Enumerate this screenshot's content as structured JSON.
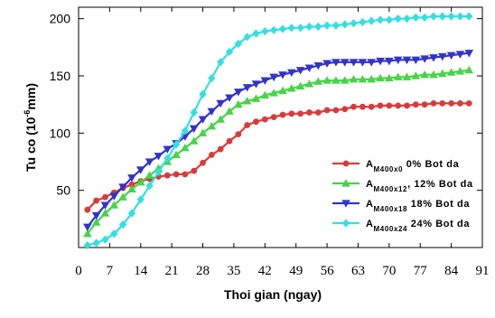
{
  "chart_data": {
    "type": "line",
    "title": "",
    "xlabel": "Thoi gian (ngay)",
    "ylabel": {
      "prefix": "Tu co (10",
      "superscript": "-6",
      "suffix": "mm)"
    },
    "xlim": [
      0,
      91
    ],
    "ylim": [
      0,
      210
    ],
    "xticks": [
      0,
      7,
      14,
      21,
      28,
      35,
      42,
      49,
      56,
      63,
      70,
      77,
      84,
      91
    ],
    "xtick_labels": [
      "0",
      "7",
      "14",
      "21",
      "28",
      "35",
      "42",
      "49",
      "56",
      "63",
      "70",
      "77",
      "84",
      "91"
    ],
    "yticks": [
      50,
      100,
      150,
      200
    ],
    "ytick_labels": [
      "50",
      "100",
      "150",
      "200"
    ],
    "grid": false,
    "legend_position": "right",
    "x": [
      2,
      4,
      6,
      8,
      10,
      12,
      14,
      16,
      18,
      20,
      22,
      24,
      26,
      28,
      30,
      32,
      34,
      36,
      38,
      40,
      42,
      44,
      46,
      48,
      50,
      52,
      54,
      56,
      58,
      60,
      62,
      64,
      66,
      68,
      70,
      72,
      74,
      76,
      78,
      80,
      82,
      84,
      86,
      88
    ],
    "series": [
      {
        "legend_main": "A",
        "legend_sub": "M400x0",
        "legend_suffix": " 0% Bot da",
        "color": "#dc3a3a",
        "marker": "circle",
        "values": [
          33,
          41,
          44,
          48,
          52,
          55,
          58,
          60,
          62,
          63,
          64,
          64,
          67,
          74,
          81,
          86,
          93,
          99,
          107,
          110,
          112,
          114,
          116,
          117,
          117,
          118,
          118,
          120,
          120,
          121,
          123,
          123,
          123,
          124,
          124,
          124,
          124,
          125,
          125,
          126,
          126,
          126,
          126,
          126
        ]
      },
      {
        "legend_main": "A",
        "legend_sub": "M400x12",
        "legend_suffix": ", 12% Bot da",
        "color": "#44d644",
        "marker": "triangle-up",
        "values": [
          12,
          22,
          30,
          37,
          44,
          51,
          57,
          63,
          69,
          75,
          81,
          87,
          93,
          100,
          106,
          112,
          119,
          125,
          128,
          130,
          133,
          135,
          137,
          139,
          141,
          143,
          145,
          146,
          146,
          146,
          147,
          147,
          147,
          148,
          148,
          149,
          149,
          150,
          151,
          151,
          152,
          153,
          154,
          155
        ]
      },
      {
        "legend_main": "A",
        "legend_sub": "M400x18",
        "legend_suffix": " 18% Bot da",
        "color": "#3333cc",
        "marker": "triangle-down",
        "values": [
          18,
          28,
          37,
          45,
          53,
          61,
          68,
          75,
          80,
          86,
          91,
          97,
          104,
          112,
          119,
          126,
          131,
          136,
          140,
          143,
          146,
          149,
          151,
          153,
          155,
          157,
          159,
          161,
          162,
          162,
          162,
          162,
          162,
          163,
          163,
          164,
          164,
          164,
          165,
          166,
          167,
          168,
          169,
          170
        ]
      },
      {
        "legend_main": "A",
        "legend_sub": "M400x24",
        "legend_suffix": " 24% Bot da",
        "color": "#33e0e0",
        "marker": "diamond",
        "values": [
          2,
          4,
          7,
          12,
          20,
          30,
          42,
          54,
          66,
          78,
          90,
          102,
          118,
          134,
          148,
          162,
          171,
          178,
          184,
          187,
          189,
          190,
          191,
          192,
          192,
          193,
          193,
          194,
          194,
          195,
          196,
          197,
          198,
          199,
          199,
          200,
          200,
          201,
          201,
          202,
          202,
          202,
          202,
          202
        ]
      }
    ]
  }
}
